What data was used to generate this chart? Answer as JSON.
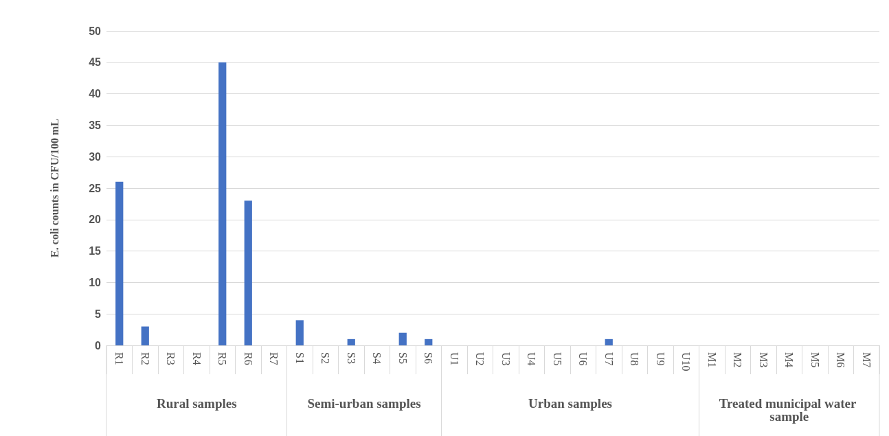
{
  "chart_data": {
    "type": "bar",
    "ylabel": "E. coli counts in CFU/100 mL",
    "categories": [
      "R1",
      "R2",
      "R3",
      "R4",
      "R5",
      "R6",
      "R7",
      "S1",
      "S2",
      "S3",
      "S4",
      "S5",
      "S6",
      "U1",
      "U2",
      "U3",
      "U4",
      "U5",
      "U6",
      "U7",
      "U8",
      "U9",
      "U10",
      "M1",
      "M2",
      "M3",
      "M4",
      "M5",
      "M6",
      "M7"
    ],
    "values": [
      26,
      3,
      0,
      0,
      45,
      23,
      0,
      4,
      0,
      1,
      0,
      2,
      1,
      0,
      0,
      0,
      0,
      0,
      0,
      1,
      0,
      0,
      0,
      0,
      0,
      0,
      0,
      0,
      0,
      0
    ],
    "color": "#4472c4",
    "ylim": [
      0,
      50
    ],
    "yticks": [
      0,
      5,
      10,
      15,
      20,
      25,
      30,
      35,
      40,
      45,
      50
    ],
    "grid": "y",
    "annotations": [
      "Rural samples",
      "Semi-urban samples",
      "Urban samples",
      "Treated municipal water sample"
    ]
  }
}
